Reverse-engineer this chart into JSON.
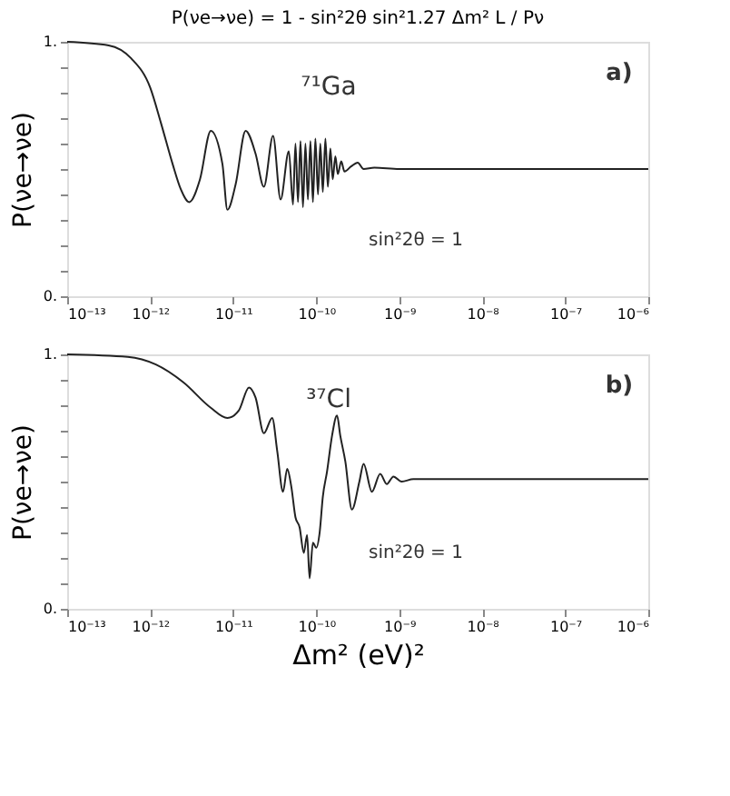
{
  "chart_data": [
    {
      "type": "line",
      "title": "P(νe→νe) = 1 - sin²2θ sin²1.27 Δm² L / Pν",
      "ylabel": "P(νe→νe)",
      "annotations": [
        "⁷¹Ga",
        "a)",
        "sin²2θ = 1"
      ],
      "color": "#222222",
      "grid": false,
      "log": "x",
      "xlim": [
        1e-13,
        1e-06
      ],
      "ylim": [
        0,
        1
      ],
      "xticks": [
        {
          "value": 1e-13,
          "label": "10⁻¹³"
        },
        {
          "value": 1e-12,
          "label": "10⁻¹²"
        },
        {
          "value": 1e-11,
          "label": "10⁻¹¹"
        },
        {
          "value": 1e-10,
          "label": "10⁻¹⁰"
        },
        {
          "value": 1e-09,
          "label": "10⁻⁹"
        },
        {
          "value": 1e-08,
          "label": "10⁻⁸"
        },
        {
          "value": 1e-07,
          "label": "10⁻⁷"
        },
        {
          "value": 1e-06,
          "label": "10⁻⁶"
        }
      ],
      "yticks": [
        {
          "value": 0,
          "label": "0."
        },
        {
          "value": 0.1,
          "label": null
        },
        {
          "value": 0.2,
          "label": null
        },
        {
          "value": 0.3,
          "label": null
        },
        {
          "value": 0.4,
          "label": null
        },
        {
          "value": 0.5,
          "label": null
        },
        {
          "value": 0.6,
          "label": null
        },
        {
          "value": 0.7,
          "label": null
        },
        {
          "value": 0.8,
          "label": null
        },
        {
          "value": 0.9,
          "label": null
        },
        {
          "value": 1,
          "label": "1."
        }
      ],
      "x": [
        1e-13,
        3.16e-13,
        5.89e-13,
        1e-12,
        1.35e-12,
        1.86e-12,
        2.34e-12,
        2.95e-12,
        3.98e-12,
        5.37e-12,
        7.41e-12,
        8.51e-12,
        1.07e-11,
        1.41e-11,
        1.86e-11,
        2.34e-11,
        3.02e-11,
        3.72e-11,
        4.68e-11,
        5.25e-11,
        5.62e-11,
        6.03e-11,
        6.46e-11,
        6.92e-11,
        7.41e-11,
        7.94e-11,
        8.51e-11,
        9.12e-11,
        9.77e-11,
        1.05e-10,
        1.12e-10,
        1.2e-10,
        1.29e-10,
        1.38e-10,
        1.48e-10,
        1.58e-10,
        1.7e-10,
        1.82e-10,
        2e-10,
        2.19e-10,
        2.63e-10,
        3.16e-10,
        3.72e-10,
        5.01e-10,
        1e-09,
        1e-08,
        1e-07,
        1e-06
      ],
      "values": [
        1.0,
        0.986,
        0.935,
        0.82,
        0.68,
        0.52,
        0.42,
        0.37,
        0.46,
        0.65,
        0.52,
        0.34,
        0.44,
        0.65,
        0.56,
        0.43,
        0.63,
        0.38,
        0.57,
        0.36,
        0.6,
        0.37,
        0.61,
        0.35,
        0.6,
        0.38,
        0.61,
        0.37,
        0.62,
        0.4,
        0.6,
        0.41,
        0.62,
        0.43,
        0.58,
        0.46,
        0.55,
        0.48,
        0.53,
        0.49,
        0.51,
        0.525,
        0.5,
        0.505,
        0.5,
        0.5,
        0.5,
        0.5
      ]
    },
    {
      "type": "line",
      "xlabel": "Δm² (eV)²",
      "ylabel": "P(νe→νe)",
      "annotations": [
        "³⁷Cl",
        "b)",
        "sin²2θ = 1"
      ],
      "color": "#222222",
      "grid": false,
      "log": "x",
      "xlim": [
        1e-13,
        1e-06
      ],
      "ylim": [
        0,
        1
      ],
      "xticks": [
        {
          "value": 1e-13,
          "label": "10⁻¹³"
        },
        {
          "value": 1e-12,
          "label": "10⁻¹²"
        },
        {
          "value": 1e-11,
          "label": "10⁻¹¹"
        },
        {
          "value": 1e-10,
          "label": "10⁻¹⁰"
        },
        {
          "value": 1e-09,
          "label": "10⁻⁹"
        },
        {
          "value": 1e-08,
          "label": "10⁻⁸"
        },
        {
          "value": 1e-07,
          "label": "10⁻⁷"
        },
        {
          "value": 1e-06,
          "label": "10⁻⁶"
        }
      ],
      "yticks": [
        {
          "value": 0,
          "label": "0."
        },
        {
          "value": 0.1,
          "label": null
        },
        {
          "value": 0.2,
          "label": null
        },
        {
          "value": 0.3,
          "label": null
        },
        {
          "value": 0.4,
          "label": null
        },
        {
          "value": 0.5,
          "label": null
        },
        {
          "value": 0.6,
          "label": null
        },
        {
          "value": 0.7,
          "label": null
        },
        {
          "value": 0.8,
          "label": null
        },
        {
          "value": 0.9,
          "label": null
        },
        {
          "value": 1,
          "label": "1."
        }
      ],
      "x": [
        1e-13,
        5.37e-13,
        1.17e-12,
        2.51e-12,
        5.37e-12,
        8.51e-12,
        1.17e-11,
        1.55e-11,
        1.86e-11,
        2.34e-11,
        2.95e-11,
        3.39e-11,
        3.98e-11,
        4.47e-11,
        5.01e-11,
        5.62e-11,
        6.31e-11,
        7.08e-11,
        7.76e-11,
        8.32e-11,
        9.12e-11,
        1e-10,
        1.1e-10,
        1.2e-10,
        1.35e-10,
        1.55e-10,
        1.78e-10,
        1.95e-10,
        2.24e-10,
        2.69e-10,
        3.31e-10,
        3.72e-10,
        4.68e-10,
        5.89e-10,
        7.08e-10,
        8.51e-10,
        1.07e-09,
        1.48e-09,
        1e-08,
        1e-07,
        1e-06
      ],
      "values": [
        1.0,
        0.99,
        0.96,
        0.89,
        0.79,
        0.75,
        0.78,
        0.87,
        0.83,
        0.69,
        0.75,
        0.62,
        0.46,
        0.55,
        0.48,
        0.36,
        0.32,
        0.22,
        0.29,
        0.12,
        0.26,
        0.24,
        0.3,
        0.44,
        0.54,
        0.68,
        0.76,
        0.68,
        0.58,
        0.39,
        0.5,
        0.57,
        0.46,
        0.53,
        0.49,
        0.52,
        0.5,
        0.51,
        0.51,
        0.51,
        0.51
      ]
    }
  ]
}
